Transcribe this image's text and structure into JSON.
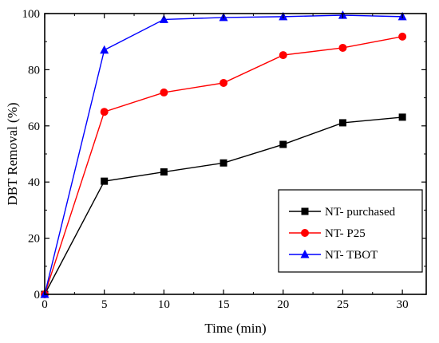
{
  "chart_data": {
    "type": "line",
    "xlabel": "Time (min)",
    "ylabel": "DBT Removal (%)",
    "xlim": [
      0,
      32
    ],
    "ylim": [
      0,
      100
    ],
    "xticks": [
      0,
      5,
      10,
      15,
      20,
      25,
      30
    ],
    "yticks": [
      0,
      20,
      40,
      60,
      80,
      100
    ],
    "grid": false,
    "legend_position": "bottom-right",
    "x": [
      0,
      5,
      10,
      15,
      20,
      25,
      30
    ],
    "series": [
      {
        "name": "NT- purchased",
        "color": "#000000",
        "marker": "square",
        "values": [
          0,
          40.3,
          43.6,
          46.8,
          53.4,
          61.1,
          63.1
        ]
      },
      {
        "name": "NT- P25",
        "color": "#ff0000",
        "marker": "circle",
        "values": [
          0,
          65.0,
          71.9,
          75.3,
          85.2,
          87.8,
          91.8
        ]
      },
      {
        "name": "NT- TBOT",
        "color": "#0000ff",
        "marker": "triangle",
        "values": [
          0,
          87.0,
          97.9,
          98.6,
          98.9,
          99.4,
          98.9
        ]
      }
    ]
  }
}
